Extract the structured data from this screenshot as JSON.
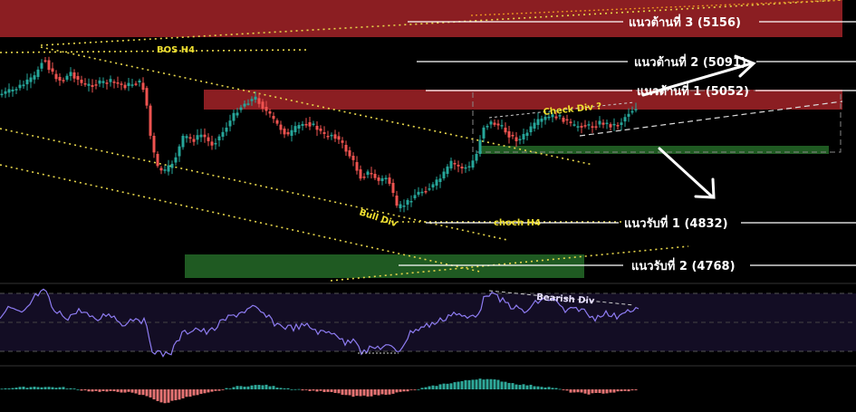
{
  "chart_data": {
    "type": "candlestick",
    "instrument_hint": "XAU (gold) price chart",
    "colors": {
      "bull": "#26a69a",
      "bear": "#ef5350",
      "resistance_zone": "#8b1e22",
      "support_zone": "#1f5a22",
      "trendline": "#e6d54a",
      "rsi_line": "#8e7cf2",
      "background": "#000000"
    },
    "resistance_levels": [
      {
        "label": "แนวต้านที่  3 (5156)",
        "value": 5156
      },
      {
        "label": "แนวต้านที่  2 (5091)",
        "value": 5091
      },
      {
        "label": "แนวต้านที่ 1 (5052)",
        "value": 5052
      }
    ],
    "support_levels": [
      {
        "label": "แนวรับที่ 1 (4832)",
        "value": 4832
      },
      {
        "label": "แนวรับที่ 2 (4768)",
        "value": 4768
      }
    ],
    "annotations": {
      "bos": "BOS H4",
      "check_div": "Check Div ?",
      "bull_div": "Bull Div",
      "choch": "choch H4",
      "bearish_div": "Bearish Div"
    },
    "indicators": [
      "RSI",
      "MACD histogram"
    ],
    "grid": false,
    "legend": "none"
  }
}
